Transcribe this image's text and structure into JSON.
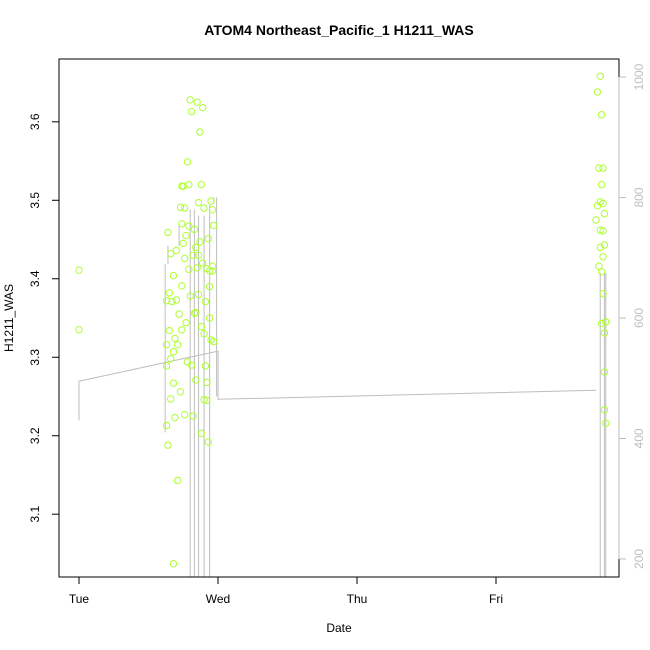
{
  "chart_data": {
    "type": "scatter",
    "title": "ATOM4 Northeast_Pacific_1 H1211_WAS",
    "xlabel": "Date",
    "ylabel": "H1211_WAS",
    "x_ticks": [
      "Tue",
      "Wed",
      "Thu",
      "Fri"
    ],
    "x_range_days": [
      -0.08,
      3.9
    ],
    "y_ticks": [
      3.1,
      3.2,
      3.3,
      3.4,
      3.5,
      3.6
    ],
    "ylim": [
      3.02,
      3.68
    ],
    "y2_ticks": [
      200,
      400,
      600,
      800,
      1000
    ],
    "y2_range": [
      1030,
      170
    ],
    "point_color": "#ADFF2F",
    "line_color": "#BEBEBE",
    "series": [
      {
        "points_day_value": [
          [
            0.0,
            3.411
          ],
          [
            0.0,
            3.335
          ],
          [
            0.63,
            3.213
          ],
          [
            0.63,
            3.289
          ],
          [
            0.63,
            3.316
          ],
          [
            0.63,
            3.372
          ],
          [
            0.64,
            3.459
          ],
          [
            0.64,
            3.188
          ],
          [
            0.65,
            3.334
          ],
          [
            0.65,
            3.382
          ],
          [
            0.66,
            3.247
          ],
          [
            0.66,
            3.298
          ],
          [
            0.66,
            3.432
          ],
          [
            0.67,
            3.371
          ],
          [
            0.68,
            3.037
          ],
          [
            0.68,
            3.267
          ],
          [
            0.68,
            3.307
          ],
          [
            0.68,
            3.404
          ],
          [
            0.69,
            3.223
          ],
          [
            0.69,
            3.324
          ],
          [
            0.7,
            3.373
          ],
          [
            0.7,
            3.436
          ],
          [
            0.71,
            3.143
          ],
          [
            0.71,
            3.316
          ],
          [
            0.72,
            3.355
          ],
          [
            0.73,
            3.491
          ],
          [
            0.73,
            3.256
          ],
          [
            0.74,
            3.518
          ],
          [
            0.74,
            3.335
          ],
          [
            0.74,
            3.391
          ],
          [
            0.75,
            3.445
          ],
          [
            0.75,
            3.518
          ],
          [
            0.76,
            3.426
          ],
          [
            0.76,
            3.227
          ],
          [
            0.77,
            3.455
          ],
          [
            0.77,
            3.344
          ],
          [
            0.78,
            3.549
          ],
          [
            0.78,
            3.294
          ],
          [
            0.79,
            3.412
          ],
          [
            0.79,
            3.467
          ],
          [
            0.8,
            3.628
          ],
          [
            0.8,
            3.378
          ],
          [
            0.81,
            3.29
          ],
          [
            0.81,
            3.613
          ],
          [
            0.82,
            3.43
          ],
          [
            0.82,
            3.225
          ],
          [
            0.83,
            3.356
          ],
          [
            0.83,
            3.463
          ],
          [
            0.84,
            3.357
          ],
          [
            0.84,
            3.271
          ],
          [
            0.85,
            3.625
          ],
          [
            0.85,
            3.414
          ],
          [
            0.86,
            3.38
          ],
          [
            0.86,
            3.497
          ],
          [
            0.87,
            3.587
          ],
          [
            0.87,
            3.447
          ],
          [
            0.88,
            3.339
          ],
          [
            0.88,
            3.203
          ],
          [
            0.89,
            3.618
          ],
          [
            0.89,
            3.42
          ],
          [
            0.9,
            3.246
          ],
          [
            0.9,
            3.49
          ],
          [
            0.91,
            3.289
          ],
          [
            0.91,
            3.371
          ],
          [
            0.92,
            3.413
          ],
          [
            0.92,
            3.268
          ],
          [
            0.93,
            3.451
          ],
          [
            0.93,
            3.192
          ],
          [
            0.94,
            3.35
          ],
          [
            0.94,
            3.41
          ],
          [
            0.95,
            3.499
          ],
          [
            0.95,
            3.322
          ],
          [
            0.96,
            3.416
          ],
          [
            0.96,
            3.488
          ],
          [
            0.97,
            3.468
          ],
          [
            0.97,
            3.32
          ],
          [
            0.74,
            3.47
          ],
          [
            0.76,
            3.49
          ],
          [
            0.79,
            3.52
          ],
          [
            0.84,
            3.44
          ],
          [
            0.86,
            3.43
          ],
          [
            0.88,
            3.52
          ],
          [
            0.9,
            3.33
          ],
          [
            0.92,
            3.245
          ],
          [
            0.94,
            3.39
          ],
          [
            0.96,
            3.41
          ],
          [
            3.72,
            3.475
          ],
          [
            3.73,
            3.638
          ],
          [
            3.73,
            3.493
          ],
          [
            3.74,
            3.416
          ],
          [
            3.74,
            3.541
          ],
          [
            3.75,
            3.658
          ],
          [
            3.75,
            3.498
          ],
          [
            3.75,
            3.462
          ],
          [
            3.75,
            3.44
          ],
          [
            3.76,
            3.609
          ],
          [
            3.76,
            3.52
          ],
          [
            3.76,
            3.409
          ],
          [
            3.76,
            3.343
          ],
          [
            3.77,
            3.541
          ],
          [
            3.77,
            3.496
          ],
          [
            3.77,
            3.461
          ],
          [
            3.77,
            3.428
          ],
          [
            3.77,
            3.381
          ],
          [
            3.78,
            3.483
          ],
          [
            3.78,
            3.443
          ],
          [
            3.78,
            3.331
          ],
          [
            3.78,
            3.281
          ],
          [
            3.78,
            3.233
          ],
          [
            3.79,
            3.216
          ],
          [
            3.79,
            3.345
          ],
          [
            3.79,
            3.345
          ]
        ]
      }
    ]
  }
}
